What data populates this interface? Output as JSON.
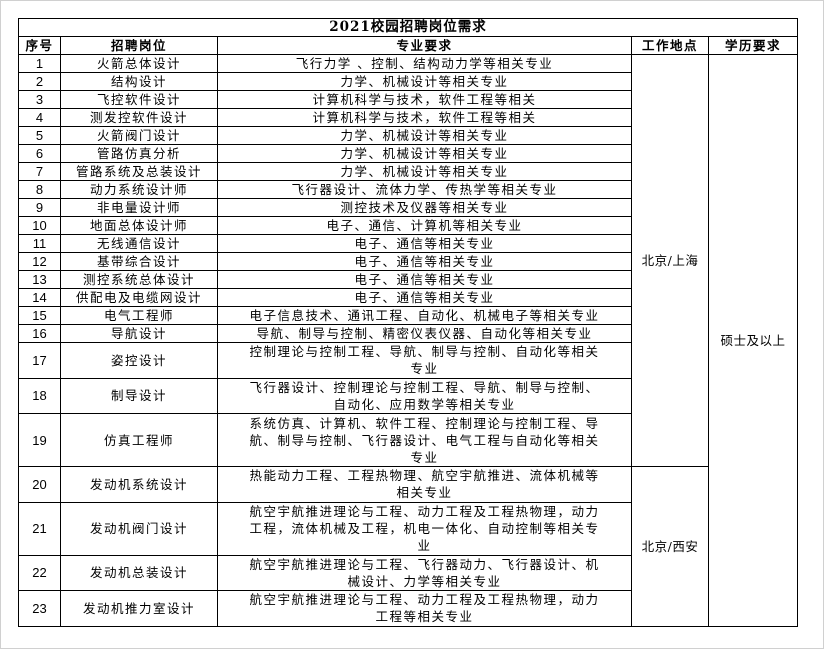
{
  "title": "2021校园招聘岗位需求",
  "headers": [
    "序号",
    "招聘岗位",
    "专业要求",
    "工作地点",
    "学历要求"
  ],
  "education": "硕士及以上",
  "locations": [
    {
      "label": "北京/上海",
      "from": 1,
      "to": 19
    },
    {
      "label": "北京/西安",
      "from": 20,
      "to": 23
    }
  ],
  "rows": [
    {
      "no": "1",
      "position": "火箭总体设计",
      "major": "飞行力学 、控制、结构动力学等相关专业",
      "lines": 1
    },
    {
      "no": "2",
      "position": "结构设计",
      "major": "力学、机械设计等相关专业",
      "lines": 1
    },
    {
      "no": "3",
      "position": "飞控软件设计",
      "major": "计算机科学与技术，软件工程等相关",
      "lines": 1
    },
    {
      "no": "4",
      "position": "测发控软件设计",
      "major": "计算机科学与技术，软件工程等相关",
      "lines": 1
    },
    {
      "no": "5",
      "position": "火箭阀门设计",
      "major": "力学、机械设计等相关专业",
      "lines": 1
    },
    {
      "no": "6",
      "position": "管路仿真分析",
      "major": "力学、机械设计等相关专业",
      "lines": 1
    },
    {
      "no": "7",
      "position": "管路系统及总装设计",
      "major": "力学、机械设计等相关专业",
      "lines": 1
    },
    {
      "no": "8",
      "position": "动力系统设计师",
      "major": "飞行器设计、流体力学、传热学等相关专业",
      "lines": 1
    },
    {
      "no": "9",
      "position": "非电量设计师",
      "major": "测控技术及仪器等相关专业",
      "lines": 1
    },
    {
      "no": "10",
      "position": "地面总体设计师",
      "major": "电子、通信、计算机等相关专业",
      "lines": 1
    },
    {
      "no": "11",
      "position": "无线通信设计",
      "major": "电子、通信等相关专业",
      "lines": 1
    },
    {
      "no": "12",
      "position": "基带综合设计",
      "major": "电子、通信等相关专业",
      "lines": 1
    },
    {
      "no": "13",
      "position": "测控系统总体设计",
      "major": "电子、通信等相关专业",
      "lines": 1
    },
    {
      "no": "14",
      "position": "供配电及电缆网设计",
      "major": "电子、通信等相关专业",
      "lines": 1
    },
    {
      "no": "15",
      "position": "电气工程师",
      "major": "电子信息技术、通讯工程、自动化、机械电子等相关专业",
      "lines": 1
    },
    {
      "no": "16",
      "position": "导航设计",
      "major": "导航、制导与控制、精密仪表仪器、自动化等相关专业",
      "lines": 1
    },
    {
      "no": "17",
      "position": "姿控设计",
      "major": "控制理论与控制工程、导航、制导与控制、自动化等相关\n专业",
      "lines": 2
    },
    {
      "no": "18",
      "position": "制导设计",
      "major": "飞行器设计、控制理论与控制工程、导航、制导与控制、\n自动化、应用数学等相关专业",
      "lines": 2
    },
    {
      "no": "19",
      "position": "仿真工程师",
      "major": "系统仿真、计算机、软件工程、控制理论与控制工程、导\n航、制导与控制、飞行器设计、电气工程与自动化等相关\n专业",
      "lines": 3
    },
    {
      "no": "20",
      "position": "发动机系统设计",
      "major": "热能动力工程、工程热物理、航空宇航推进、流体机械等\n相关专业",
      "lines": 2
    },
    {
      "no": "21",
      "position": "发动机阀门设计",
      "major": "航空宇航推进理论与工程、动力工程及工程热物理，动力\n工程，流体机械及工程，机电一体化、自动控制等相关专\n业",
      "lines": 3
    },
    {
      "no": "22",
      "position": "发动机总装设计",
      "major": "航空宇航推进理论与工程、飞行器动力、飞行器设计、机\n械设计、力学等相关专业",
      "lines": 2
    },
    {
      "no": "23",
      "position": "发动机推力室设计",
      "major": "航空宇航推进理论与工程、动力工程及工程热物理，动力\n工程等相关专业",
      "lines": 2
    }
  ]
}
